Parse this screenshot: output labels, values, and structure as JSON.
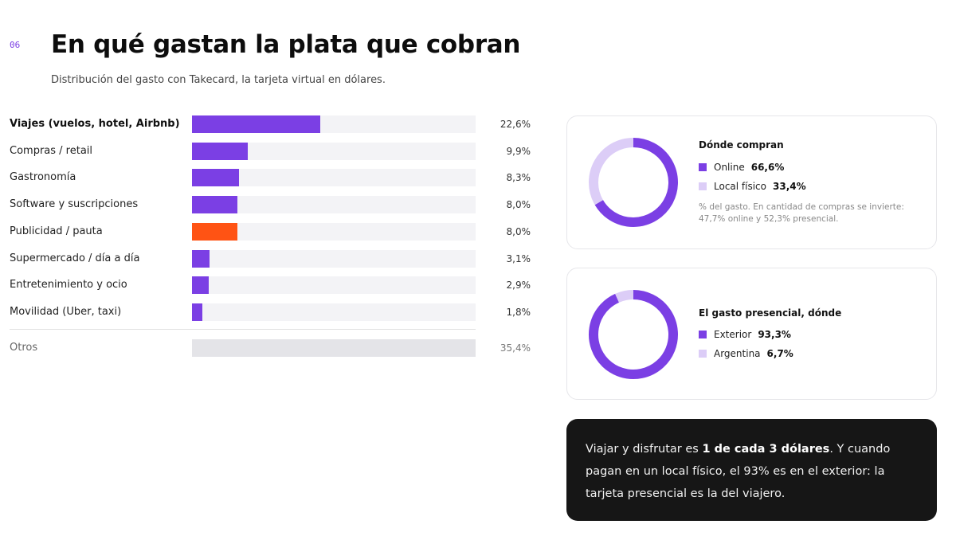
{
  "header": {
    "section_number": "06",
    "title": "En qué gastan la plata que cobran",
    "subtitle": "Distribución del gasto con Takecard, la tarjeta virtual en dólares."
  },
  "colors": {
    "primary": "#7b3fe4",
    "highlight": "#ff5314",
    "light": "#dccdf7",
    "others": "#e4e4e8"
  },
  "chart_data": [
    {
      "type": "bar",
      "orientation": "horizontal",
      "categories": [
        "Viajes (vuelos, hotel, Airbnb)",
        "Compras / retail",
        "Gastronomía",
        "Software y suscripciones",
        "Publicidad / pauta",
        "Supermercado / día a día",
        "Entretenimiento y ocio",
        "Movilidad (Uber, taxi)",
        "Otros"
      ],
      "values": [
        22.6,
        9.9,
        8.3,
        8.0,
        8.0,
        3.1,
        2.9,
        1.8,
        35.4
      ],
      "value_labels": [
        "22,6%",
        "9,9%",
        "8,3%",
        "8,0%",
        "8,0%",
        "3,1%",
        "2,9%",
        "1,8%",
        "35,4%"
      ],
      "unit": "%",
      "xlim": [
        0,
        50
      ],
      "grid": false
    },
    {
      "type": "pie",
      "style": "donut",
      "title": "Dónde compran",
      "categories": [
        "Online",
        "Local físico"
      ],
      "values": [
        66.6,
        33.4
      ],
      "value_labels": [
        "66,6%",
        "33,4%"
      ],
      "note": "% del gasto. En cantidad de compras se invierte: 47,7% online y 52,3% presencial."
    },
    {
      "type": "pie",
      "style": "donut",
      "title": "El gasto presencial, dónde",
      "categories": [
        "Exterior",
        "Argentina"
      ],
      "values": [
        93.3,
        6.7
      ],
      "value_labels": [
        "93,3%",
        "6,7%"
      ]
    }
  ],
  "callout": {
    "part1": "Viajar y disfrutar es ",
    "bold": "1 de cada 3 dólares",
    "part2": ". Y cuando pagan en un local físico, el 93% es en el exterior: la tarjeta presencial es la del viajero."
  }
}
